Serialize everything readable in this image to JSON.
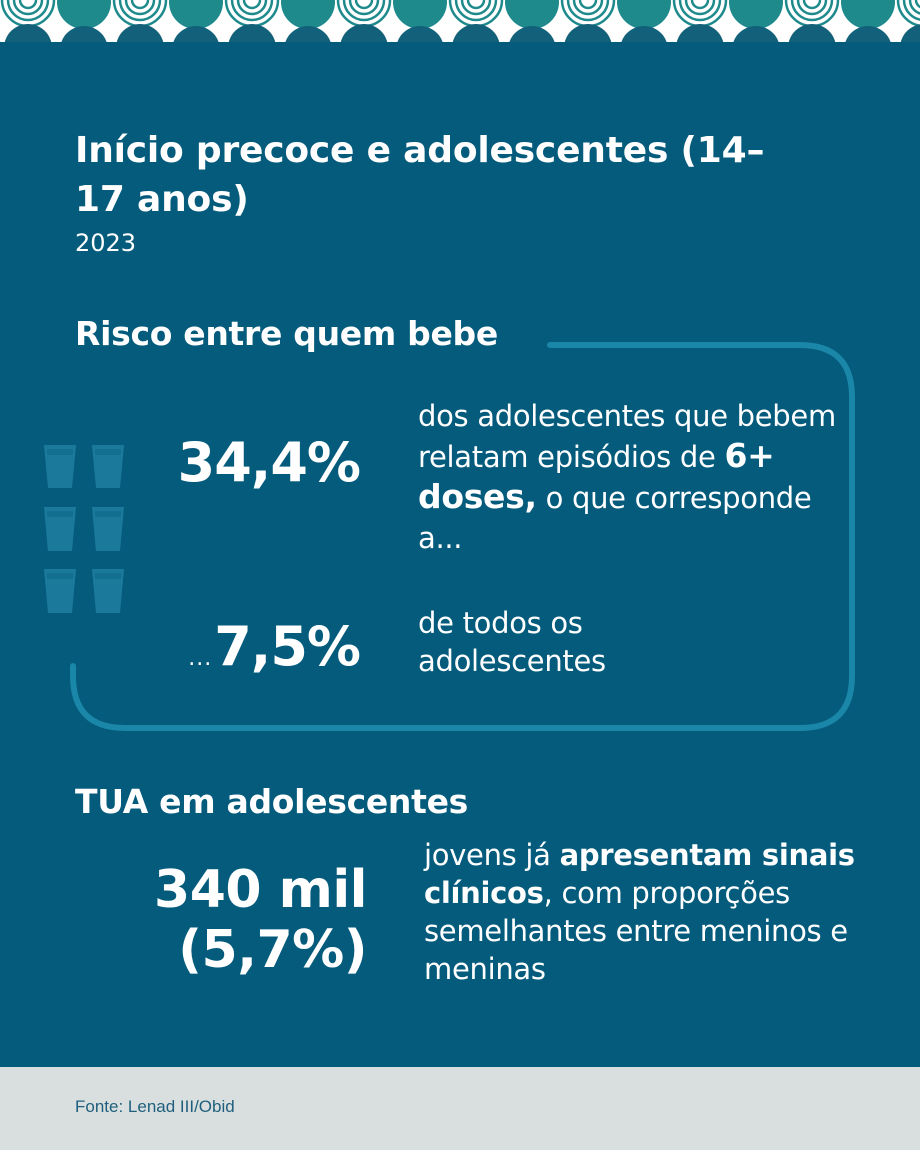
{
  "header": {
    "title": "Início precoce e adolescentes (14–17 anos)",
    "year": "2023"
  },
  "section_risk": {
    "heading": "Risco entre quem bebe",
    "stat1": "34,4%",
    "stat1_text_a": "dos adolescentes que bebem relatam episódios de ",
    "stat1_text_bold": "6+ doses,",
    "stat1_text_b": " o que corresponde a...",
    "stat2_prefix": "...",
    "stat2": "7,5%",
    "stat2_text": "de todos os adolescentes",
    "glass_icon": "glass-icon",
    "glass_count": 6
  },
  "section_tua": {
    "heading": "TUA em adolescentes",
    "stat_line1": "340 mil",
    "stat_line2": "(5,7%)",
    "text_a": "jovens já ",
    "text_bold": "apresentam sinais clínicos",
    "text_b": ", com proporções semelhantes entre meninos e meninas"
  },
  "footer": {
    "source": "Fonte: Lenad III/Obid"
  },
  "colors": {
    "background": "#045b7c",
    "frame_line": "#1a86a8",
    "glass": "#1b7a9c",
    "footer_bg": "#d9dfde",
    "pattern_teal": "#1f8a8c",
    "pattern_dark": "#12607a"
  }
}
